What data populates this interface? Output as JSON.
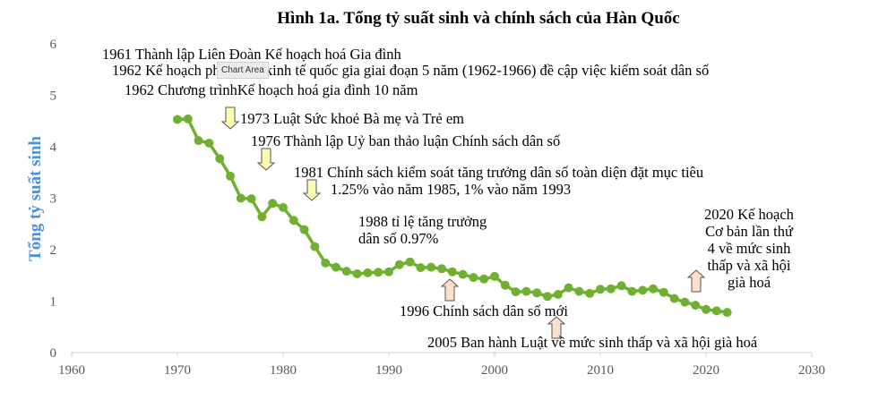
{
  "chart_data": {
    "type": "line",
    "title": "Hình 1a. Tổng tỷ suất sinh và chính sách của Hàn Quốc",
    "xlabel": "",
    "ylabel": "Tổng tỷ suất sinh",
    "xlim": [
      1960,
      2030
    ],
    "ylim": [
      0,
      6
    ],
    "x_ticks": [
      "1960",
      "1970",
      "1980",
      "1990",
      "2000",
      "2010",
      "2020",
      "2030"
    ],
    "y_ticks": [
      "0",
      "1",
      "2",
      "3",
      "4",
      "5",
      "6"
    ],
    "grid": false,
    "series": [
      {
        "color": "#6fb030",
        "x": [
          1970,
          1971,
          1972,
          1973,
          1974,
          1975,
          1976,
          1977,
          1978,
          1979,
          1980,
          1981,
          1982,
          1983,
          1984,
          1985,
          1986,
          1987,
          1988,
          1989,
          1990,
          1991,
          1992,
          1993,
          1994,
          1995,
          1996,
          1997,
          1998,
          1999,
          2000,
          2001,
          2002,
          2003,
          2004,
          2005,
          2006,
          2007,
          2008,
          2009,
          2010,
          2011,
          2012,
          2013,
          2014,
          2015,
          2016,
          2017,
          2018,
          2019,
          2020,
          2021,
          2022
        ],
        "y": [
          4.53,
          4.54,
          4.12,
          4.07,
          3.77,
          3.43,
          3.0,
          2.99,
          2.64,
          2.9,
          2.82,
          2.57,
          2.39,
          2.06,
          1.74,
          1.66,
          1.58,
          1.53,
          1.55,
          1.56,
          1.57,
          1.71,
          1.76,
          1.65,
          1.66,
          1.63,
          1.57,
          1.52,
          1.46,
          1.43,
          1.48,
          1.31,
          1.18,
          1.19,
          1.16,
          1.09,
          1.13,
          1.26,
          1.19,
          1.15,
          1.23,
          1.24,
          1.3,
          1.19,
          1.21,
          1.24,
          1.17,
          1.05,
          0.98,
          0.92,
          0.84,
          0.81,
          0.78
        ]
      }
    ],
    "annotations": [
      {
        "id": "a1961",
        "lines": [
          "1961 Thành lập Liên Đoàn Kế hoạch hoá Gia đình"
        ]
      },
      {
        "id": "a1962a",
        "lines": [
          "1962 Kế hoạch phát triển kinh tế quốc gia giai đoạn 5 năm (1962-1966) đề cập việc kiểm soát dân số"
        ]
      },
      {
        "id": "a1962b",
        "lines": [
          "1962 Chương trìnhKế hoạch hoá gia đình 10 năm"
        ]
      },
      {
        "id": "a1973",
        "lines": [
          "1973 Luật Sức khoẻ Bà mẹ và Trẻ em"
        ]
      },
      {
        "id": "a1976",
        "lines": [
          "1976 Thành lập Uỷ ban thảo luận Chính sách dân số"
        ]
      },
      {
        "id": "a1981",
        "lines": [
          "1981 Chính sách kiểm soát tăng trưởng dân số toàn diện đặt mục tiêu",
          "1.25% vào năm 1985, 1% vào năm 1993"
        ]
      },
      {
        "id": "a1988",
        "lines": [
          "1988 tỉ lệ tăng trưởng",
          "dân số 0.97%"
        ]
      },
      {
        "id": "a1996",
        "lines": [
          "1996 Chính sách dân số mới"
        ]
      },
      {
        "id": "a2005",
        "lines": [
          "2005 Ban hành Luật về mức sinh thấp và xã hội già hoá"
        ]
      },
      {
        "id": "a2020",
        "lines": [
          "2020 Kế hoạch",
          "Cơ bản lần thứ",
          "4 về mức sinh",
          "thấp và xã hội",
          "già hoá"
        ]
      }
    ]
  },
  "tooltip": "Chart Area"
}
